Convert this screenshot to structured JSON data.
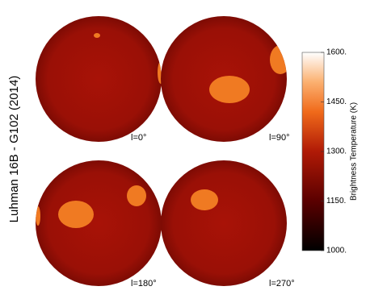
{
  "chart_data": {
    "type": "image-grid",
    "title": "Luhman 16B - G102 (2014)",
    "panels": [
      {
        "label": "l=0°"
      },
      {
        "label": "l=90°"
      },
      {
        "label": "l=180°"
      },
      {
        "label": "l=270°"
      }
    ],
    "colorbar": {
      "label": "Brightness Temperature (K)",
      "ylim": [
        1000,
        1600
      ],
      "yticks": [
        {
          "value": 1000,
          "label": "1000."
        },
        {
          "value": 1150,
          "label": "1150."
        },
        {
          "value": 1300,
          "label": "1300."
        },
        {
          "value": 1450,
          "label": "1450."
        },
        {
          "value": 1600,
          "label": "1600."
        }
      ]
    }
  }
}
